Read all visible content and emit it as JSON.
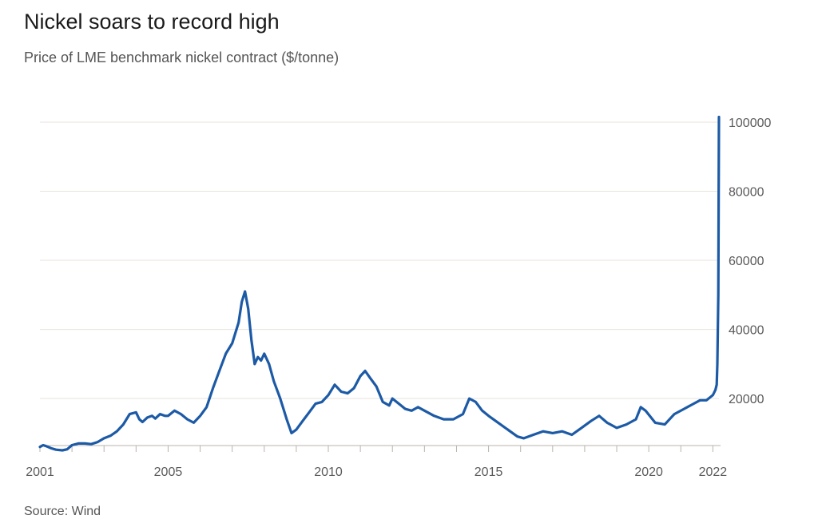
{
  "title": "Nickel soars to record high",
  "subtitle": "Price of LME benchmark nickel contract ($/tonne)",
  "source": "Source: Wind",
  "chart_data": {
    "type": "line",
    "title": "Nickel soars to record high",
    "subtitle": "Price of LME benchmark nickel contract ($/tonne)",
    "xlabel": "",
    "ylabel": "",
    "x_ticks": [
      "2001",
      "2005",
      "2010",
      "2015",
      "2020",
      "2022"
    ],
    "y_ticks": [
      "20000",
      "40000",
      "60000",
      "80000",
      "100000"
    ],
    "ylim": [
      2000,
      103000
    ],
    "xlim": [
      2001.0,
      2022.3
    ],
    "grid": "horizontal",
    "y_axis_side": "right",
    "line_color": "#1c5aa6",
    "series": [
      {
        "x": [
          2001.0,
          2001.1,
          2001.2,
          2001.35,
          2001.5,
          2001.7,
          2001.85,
          2002.0,
          2002.2,
          2002.4,
          2002.6,
          2002.8,
          2003.0,
          2003.2,
          2003.4,
          2003.6,
          2003.8,
          2004.0,
          2004.1,
          2004.2,
          2004.35,
          2004.5,
          2004.6,
          2004.75,
          2004.9,
          2005.0,
          2005.2,
          2005.4,
          2005.6,
          2005.8,
          2006.0,
          2006.2,
          2006.4,
          2006.6,
          2006.8,
          2007.0,
          2007.2,
          2007.3,
          2007.4,
          2007.5,
          2007.6,
          2007.7,
          2007.8,
          2007.9,
          2008.0,
          2008.15,
          2008.3,
          2008.5,
          2008.7,
          2008.85,
          2009.0,
          2009.2,
          2009.4,
          2009.6,
          2009.8,
          2010.0,
          2010.2,
          2010.4,
          2010.6,
          2010.8,
          2011.0,
          2011.15,
          2011.3,
          2011.5,
          2011.7,
          2011.9,
          2012.0,
          2012.2,
          2012.4,
          2012.6,
          2012.8,
          2013.0,
          2013.3,
          2013.6,
          2013.9,
          2014.2,
          2014.4,
          2014.6,
          2014.8,
          2015.0,
          2015.3,
          2015.6,
          2015.9,
          2016.1,
          2016.4,
          2016.7,
          2017.0,
          2017.3,
          2017.6,
          2017.9,
          2018.2,
          2018.45,
          2018.7,
          2019.0,
          2019.3,
          2019.6,
          2019.75,
          2019.9,
          2020.2,
          2020.5,
          2020.8,
          2021.1,
          2021.4,
          2021.6,
          2021.8,
          2022.0,
          2022.08,
          2022.12,
          2022.14,
          2022.17,
          2022.19
        ],
        "values": [
          6000,
          6500,
          6200,
          5600,
          5200,
          5000,
          5300,
          6500,
          7000,
          7000,
          6800,
          7400,
          8500,
          9200,
          10500,
          12500,
          15500,
          16000,
          14000,
          13200,
          14500,
          15000,
          14200,
          15500,
          15000,
          15000,
          16500,
          15500,
          14000,
          13000,
          15000,
          17500,
          23000,
          28000,
          33000,
          36000,
          42000,
          48000,
          51000,
          46000,
          37000,
          30000,
          32000,
          31000,
          33000,
          30000,
          25000,
          20000,
          14000,
          10000,
          11000,
          13500,
          16000,
          18500,
          19000,
          21000,
          24000,
          22000,
          21500,
          23000,
          26500,
          28000,
          26000,
          23500,
          19000,
          18000,
          20000,
          18500,
          17000,
          16500,
          17500,
          16500,
          15000,
          14000,
          14000,
          15500,
          20000,
          19000,
          16500,
          15000,
          13000,
          11000,
          9000,
          8500,
          9500,
          10500,
          10000,
          10500,
          9500,
          11500,
          13500,
          15000,
          13000,
          11500,
          12500,
          14000,
          17500,
          16500,
          13000,
          12500,
          15500,
          17000,
          18500,
          19500,
          19500,
          21000,
          22500,
          24000,
          30000,
          50000,
          101500
        ]
      }
    ]
  }
}
